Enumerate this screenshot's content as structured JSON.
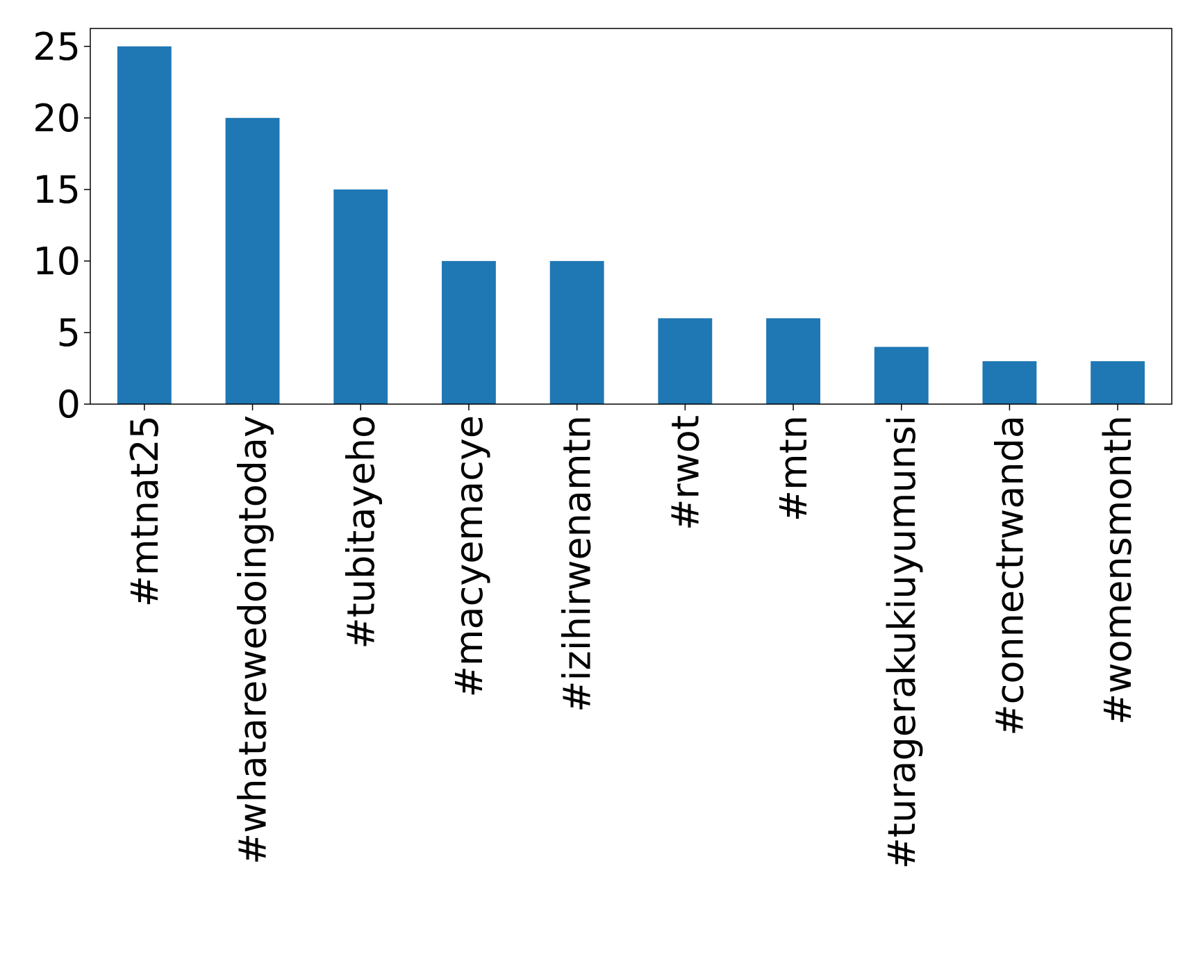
{
  "chart_data": {
    "type": "bar",
    "categories": [
      "#mtnat25",
      "#whatarewedoingtoday",
      "#tubitayeho",
      "#macyemacye",
      "#izihirwenamtn",
      "#rwot",
      "#mtn",
      "#turagerakukiuyumunsi",
      "#connectrwanda",
      "#womensmonth"
    ],
    "values": [
      25,
      20,
      15,
      10,
      10,
      6,
      6,
      4,
      3,
      3
    ],
    "color": "#1f77b4",
    "ylim": [
      0,
      26.25
    ],
    "yticks": [
      0,
      5,
      10,
      15,
      20,
      25
    ],
    "grid": false
  }
}
